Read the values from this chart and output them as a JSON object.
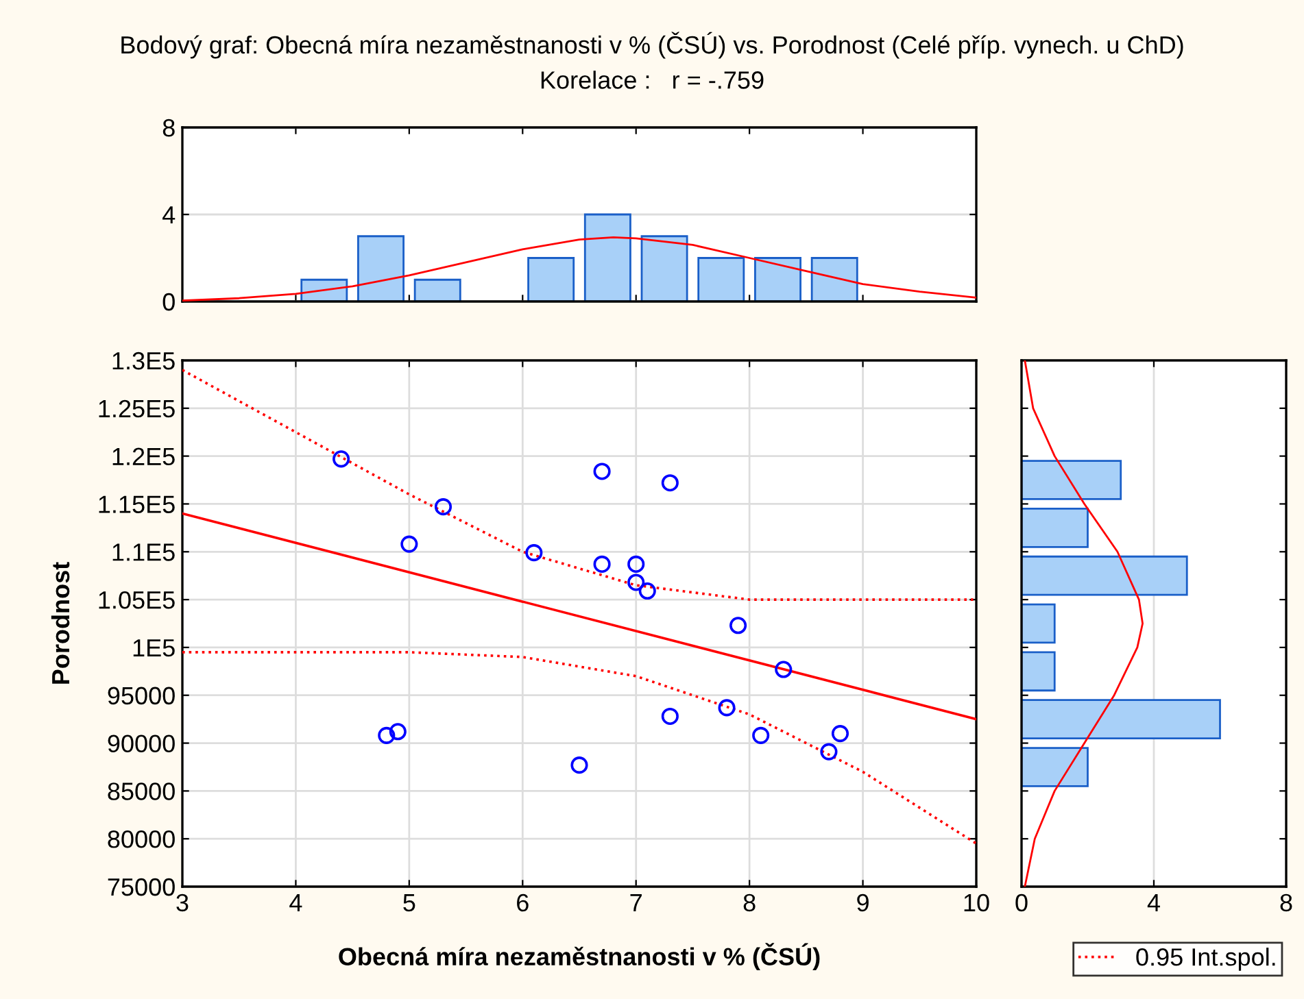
{
  "chart_data": [
    {
      "type": "histogram",
      "title": "Bodový graf: Obecná míra nezaměstnanosti v % (ČSÚ) vs. Porodnost (Celé příp. vynech. u ChD)",
      "subtitle": "Korelace :   r = -.759",
      "bins": [
        4,
        4.5,
        5,
        5.5,
        6,
        6.5,
        7,
        7.5,
        8,
        8.5,
        9
      ],
      "values": [
        1,
        3,
        1,
        0,
        2,
        4,
        3,
        2,
        2,
        2
      ],
      "color": "#a8d0f8",
      "series": [
        {
          "type": "line",
          "color": "#ff0000",
          "x": [
            3,
            3.5,
            4,
            4.5,
            5,
            5.5,
            6,
            6.5,
            6.8,
            7,
            7.5,
            8,
            8.5,
            9,
            9.5,
            10
          ],
          "values": [
            0.04,
            0.15,
            0.35,
            0.7,
            1.2,
            1.8,
            2.4,
            2.85,
            2.95,
            2.9,
            2.6,
            2.0,
            1.4,
            0.8,
            0.45,
            0.18
          ]
        }
      ],
      "xlim": [
        3,
        10
      ],
      "xticks": [
        {
          "value": 4,
          "label": null
        },
        {
          "value": 5,
          "label": null
        },
        {
          "value": 6,
          "label": null
        },
        {
          "value": 7,
          "label": null
        },
        {
          "value": 8,
          "label": null
        },
        {
          "value": 9,
          "label": null
        }
      ],
      "ylim": [
        0,
        8
      ],
      "yticks": [
        0,
        4,
        8
      ],
      "grid": "y",
      "tick_labels": "y"
    },
    {
      "type": "scatter",
      "xlabel": "Obecná míra nezaměstnanosti v % (ČSÚ)",
      "ylabel": "Porodnost",
      "series": [
        {
          "type": "scatter",
          "color": "#0000ff",
          "marker": "circle",
          "x": [
            4.4,
            6.7,
            7.3,
            5.3,
            5.0,
            6.1,
            6.7,
            7.0,
            7.0,
            7.1,
            7.9,
            8.3,
            7.3,
            7.8,
            8.1,
            8.8,
            8.7,
            4.8,
            4.9,
            6.5
          ],
          "values": [
            119700,
            118400,
            117200,
            114700,
            110800,
            109900,
            108700,
            108700,
            106800,
            105900,
            102300,
            97700,
            92800,
            93700,
            90800,
            91000,
            89100,
            90800,
            91200,
            87700
          ]
        },
        {
          "type": "line",
          "color": "#ff0000",
          "line_style": "solid",
          "x": [
            3,
            10
          ],
          "values": [
            114000,
            92500
          ]
        },
        {
          "type": "line",
          "name": "0.95 Int.spol.",
          "color": "#ff0000",
          "line_style": "dotted",
          "x": [
            3,
            4,
            5,
            6,
            7,
            8,
            9,
            10
          ],
          "values": [
            129000,
            122500,
            116000,
            110000,
            106500,
            105000,
            105000,
            105000
          ]
        },
        {
          "type": "line",
          "color": "#ff0000",
          "line_style": "dotted",
          "x": [
            3,
            4,
            5,
            6,
            7,
            8,
            9,
            10
          ],
          "values": [
            99500,
            99500,
            99500,
            99000,
            97000,
            93000,
            87000,
            79500
          ]
        }
      ],
      "xlim": [
        3,
        10
      ],
      "xticks": [
        3,
        4,
        5,
        6,
        7,
        8,
        9,
        10
      ],
      "ylim": [
        75000,
        130000
      ],
      "yticks": [
        75000,
        80000,
        85000,
        90000,
        95000,
        {
          "value": 100000,
          "label": "1E5"
        },
        {
          "value": 105000,
          "label": "1.05E5"
        },
        {
          "value": 110000,
          "label": "1.1E5"
        },
        {
          "value": 115000,
          "label": "1.15E5"
        },
        {
          "value": 120000,
          "label": "1.2E5"
        },
        {
          "value": 125000,
          "label": "1.25E5"
        },
        {
          "value": 130000,
          "label": "1.3E5"
        }
      ],
      "grid": true,
      "legend": "bottom right"
    },
    {
      "type": "histogram",
      "orientation": "horizontal",
      "bins": [
        85000,
        90000,
        95000,
        100000,
        105000,
        110000,
        115000,
        120000
      ],
      "values": [
        2,
        6,
        1,
        1,
        5,
        2,
        3
      ],
      "color": "#a8d0f8",
      "series": [
        {
          "type": "line",
          "color": "#ff0000",
          "x": [
            75000,
            80000,
            85000,
            90000,
            95000,
            100000,
            102500,
            105000,
            110000,
            115000,
            120000,
            125000,
            130000
          ],
          "values": [
            0.1,
            0.4,
            1.0,
            1.9,
            2.8,
            3.5,
            3.66,
            3.55,
            2.9,
            1.9,
            1.0,
            0.35,
            0.1
          ]
        }
      ],
      "xlim": [
        0,
        8
      ],
      "xticks": [
        0,
        4,
        8
      ],
      "ylim": [
        75000,
        130000
      ],
      "yticks": [
        {
          "value": 75000,
          "label": null
        },
        {
          "value": 80000,
          "label": null
        },
        {
          "value": 85000,
          "label": null
        },
        {
          "value": 90000,
          "label": null
        },
        {
          "value": 95000,
          "label": null
        },
        {
          "value": 100000,
          "label": null
        },
        {
          "value": 105000,
          "label": null
        },
        {
          "value": 110000,
          "label": null
        },
        {
          "value": 115000,
          "label": null
        },
        {
          "value": 120000,
          "label": null
        },
        {
          "value": 125000,
          "label": null
        },
        {
          "value": 130000,
          "label": null
        }
      ],
      "grid": "x",
      "tick_labels": "x"
    }
  ]
}
